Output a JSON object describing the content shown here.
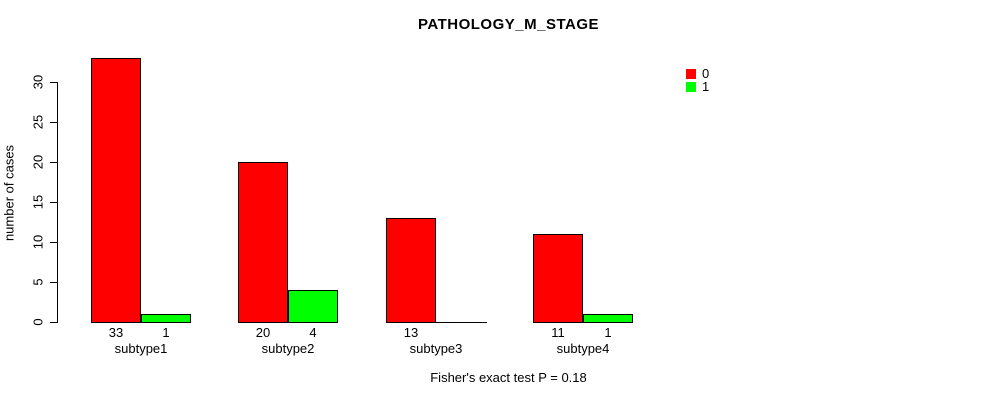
{
  "window": {
    "background_color": "#FFFFFF",
    "text_color": "#000000",
    "axis_color": "#000000"
  },
  "chart_data": {
    "type": "bar",
    "title": "PATHOLOGY_M_STAGE",
    "xlabel": "",
    "ylabel": "number of cases",
    "footnote": "Fisher's exact test P = 0.18",
    "categories": [
      "subtype1",
      "subtype2",
      "subtype3",
      "subtype4"
    ],
    "series": [
      {
        "name": "0",
        "color": "#FF0000",
        "values": [
          33,
          20,
          13,
          11
        ]
      },
      {
        "name": "1",
        "color": "#00FF00",
        "values": [
          1,
          4,
          0,
          1
        ]
      }
    ],
    "bar_value_labels_shown": true,
    "zero_values_unlabeled": true,
    "bar_border_color": "#000000",
    "yticks": [
      0,
      5,
      10,
      15,
      20,
      25,
      30
    ],
    "ylim": [
      0,
      34.6
    ],
    "grid": false,
    "legend": {
      "position": "top-right",
      "entries": [
        {
          "label": "0",
          "color": "#FF0000"
        },
        {
          "label": "1",
          "color": "#00FF00"
        }
      ]
    }
  }
}
